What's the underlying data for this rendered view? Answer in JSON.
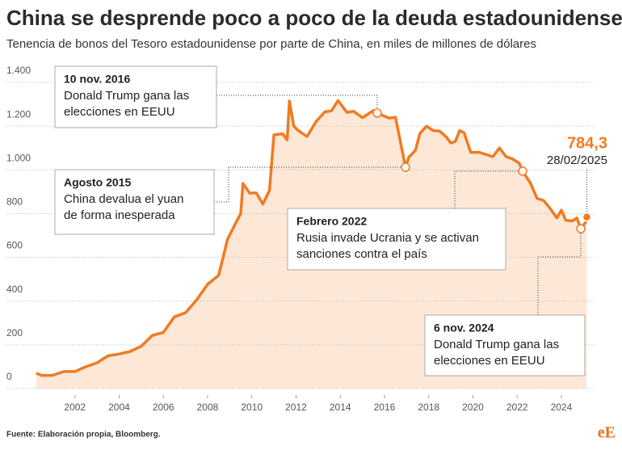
{
  "chart_data": {
    "type": "line",
    "title": "China se desprende poco a poco de la deuda estadounidense",
    "subtitle": "Tenencia de bonos del Tesoro estadounidense por parte de China, en miles de millones de dólares",
    "source": "Fuente: Elaboración propia, Bloomberg.",
    "logo": "eE",
    "xlim": [
      2000,
      2025.5
    ],
    "xticks": [
      2002,
      2004,
      2006,
      2008,
      2010,
      2012,
      2014,
      2016,
      2018,
      2020,
      2022,
      2024
    ],
    "ylim": [
      0,
      1400
    ],
    "yticks": [
      0,
      200,
      400,
      600,
      800,
      {
        "value": 1000,
        "label": "1.000"
      },
      {
        "value": 1200,
        "label": "1.200"
      },
      {
        "value": 1400,
        "label": "1.400"
      }
    ],
    "grid": true,
    "series": [
      {
        "name": "China",
        "color": "#f07b22",
        "area_color": "#fde8d8",
        "x": [
          2000.25,
          2000.5,
          2001,
          2001.5,
          2002,
          2002.5,
          2003,
          2003.5,
          2004,
          2004.5,
          2005,
          2005.5,
          2006,
          2006.5,
          2007,
          2007.5,
          2008,
          2008.5,
          2008.9,
          2009.3,
          2009.5,
          2009.6,
          2009.9,
          2010.2,
          2010.5,
          2010.8,
          2011,
          2011.4,
          2011.6,
          2011.7,
          2011.9,
          2012.1,
          2012.5,
          2012.9,
          2013.3,
          2013.6,
          2013.9,
          2014.3,
          2014.6,
          2015,
          2015.5,
          2015.67,
          2016.2,
          2016.5,
          2016.95,
          2017.1,
          2017.4,
          2017.6,
          2017.9,
          2018.2,
          2018.5,
          2018.8,
          2019,
          2019.2,
          2019.4,
          2019.6,
          2019.9,
          2020.3,
          2020.6,
          2020.9,
          2021.2,
          2021.5,
          2021.8,
          2022.1,
          2022.25,
          2022.6,
          2022.9,
          2023.2,
          2023.5,
          2023.8,
          2024,
          2024.2,
          2024.5,
          2024.7,
          2024.88,
          2025.1,
          2025.15
        ],
        "values": [
          71,
          60,
          61,
          78,
          78,
          100,
          118,
          150,
          158,
          170,
          194,
          243,
          257,
          328,
          347,
          405,
          477,
          518,
          682,
          763,
          800,
          938,
          894,
          895,
          844,
          906,
          1160,
          1165,
          1137,
          1315,
          1200,
          1180,
          1153,
          1220,
          1265,
          1270,
          1317,
          1263,
          1268,
          1239,
          1271,
          1260,
          1237,
          1240,
          1012,
          1058,
          1090,
          1166,
          1200,
          1180,
          1177,
          1150,
          1123,
          1130,
          1180,
          1170,
          1080,
          1080,
          1070,
          1060,
          1100,
          1060,
          1050,
          1030,
          994,
          940,
          870,
          860,
          822,
          780,
          816,
          769,
          767,
          780,
          731,
          761,
          784.3
        ]
      }
    ],
    "end_label": {
      "label": "784,3",
      "date": "28/02/2025"
    },
    "annotations": [
      {
        "title": "10 nov. 2016",
        "lines": [
          "Donald Trump gana las",
          "elecciones en EEUU"
        ],
        "x": 2015.67,
        "y": 1260
      },
      {
        "title": "Agosto 2015",
        "lines": [
          "China devalua el yuan",
          "de forma inesperada"
        ],
        "x": 2016.95,
        "y": 1012
      },
      {
        "title": "Febrero 2022",
        "lines": [
          "Rusia invade Ucrania y se activan",
          "sanciones contra el país"
        ],
        "x": 2022.25,
        "y": 994
      },
      {
        "title": "6 nov. 2024",
        "lines": [
          "Donald Trump gana las",
          "elecciones en EEUU"
        ],
        "x": 2024.88,
        "y": 731
      }
    ]
  }
}
